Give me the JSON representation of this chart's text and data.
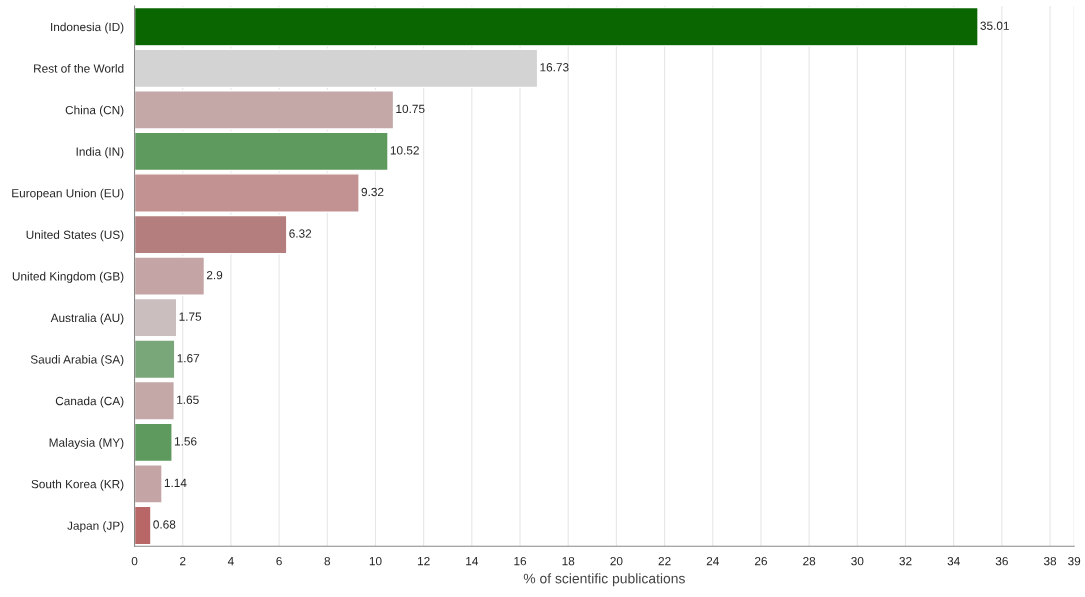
{
  "chart_data": {
    "type": "bar",
    "orientation": "horizontal",
    "xlabel": "% of scientific publications",
    "categories": [
      "Indonesia (ID)",
      "Rest of the World",
      "China (CN)",
      "India (IN)",
      "European Union (EU)",
      "United States (US)",
      "United Kingdom (GB)",
      "Australia (AU)",
      "Saudi Arabia (SA)",
      "Canada (CA)",
      "Malaysia (MY)",
      "South Korea (KR)",
      "Japan (JP)"
    ],
    "values": [
      35.01,
      16.73,
      10.75,
      10.52,
      9.32,
      6.32,
      2.9,
      1.75,
      1.67,
      1.65,
      1.56,
      1.14,
      0.68
    ],
    "colors": [
      "#0a6600",
      "#d3d3d3",
      "#c4a8a8",
      "#5e9a5e",
      "#c29292",
      "#b47e7e",
      "#c4a4a4",
      "#cbbebe",
      "#79a779",
      "#c4a8a8",
      "#5e9a5e",
      "#c4a4a4",
      "#b86666"
    ],
    "xlim": [
      0,
      39
    ],
    "xticks": [
      0,
      2,
      4,
      6,
      8,
      10,
      12,
      14,
      16,
      18,
      20,
      22,
      24,
      26,
      28,
      30,
      32,
      34,
      36,
      38,
      39
    ],
    "grid": "x",
    "data_labels": true
  }
}
